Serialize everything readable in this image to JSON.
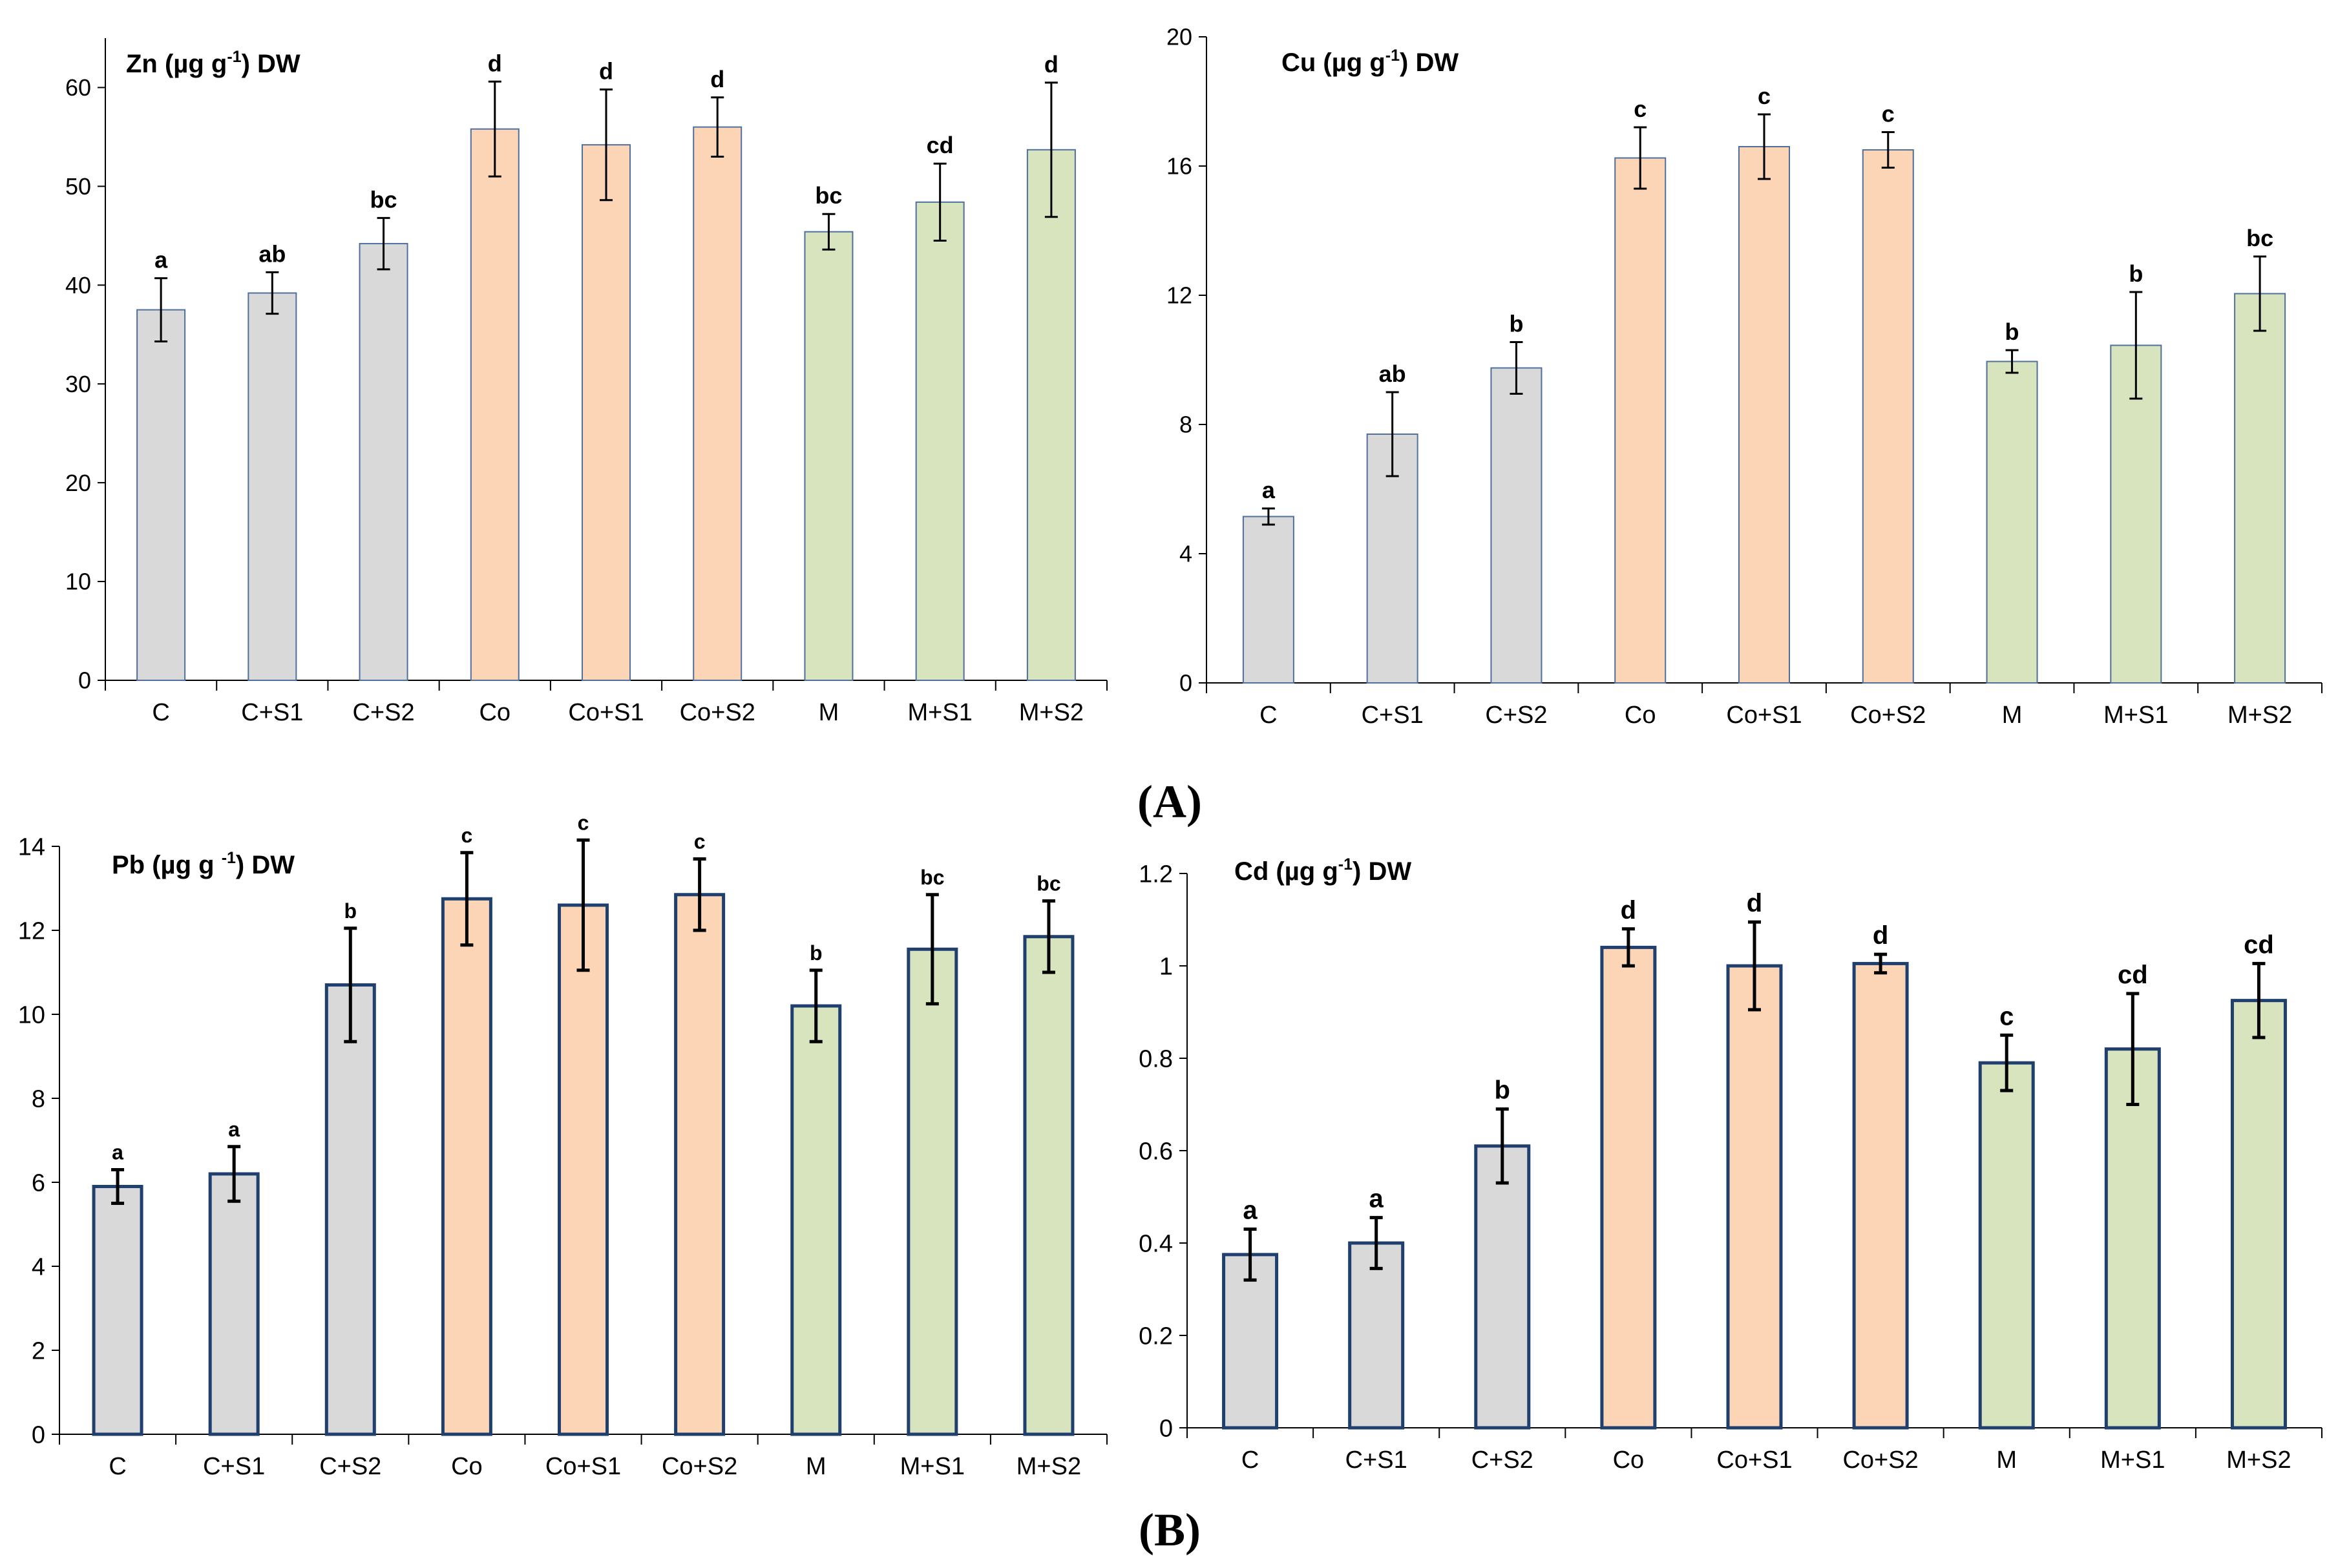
{
  "colors": {
    "gray": "#d9d9d9",
    "orange": "#fbd5b5",
    "green": "#d7e4bd",
    "outline_thin": "#4f6f9f",
    "outline_thick": "#1f3f6f",
    "axis": "#000000"
  },
  "panel_labels": {
    "A": "(A)",
    "B": "(B)"
  },
  "chart_data": [
    {
      "type": "bar",
      "title": "Zn (µg g-1) DW",
      "title_main": "Zn (µg g",
      "title_sup": "-1",
      "title_end": ") DW",
      "categories": [
        "C",
        "C+S1",
        "C+S2",
        "Co",
        "Co+S1",
        "Co+S2",
        "M",
        "M+S1",
        "M+S2"
      ],
      "values": [
        37.5,
        39.2,
        44.2,
        55.8,
        54.2,
        56.0,
        45.4,
        48.4,
        53.7
      ],
      "errors": [
        3.2,
        2.1,
        2.6,
        4.8,
        5.6,
        3.0,
        1.8,
        3.9,
        6.8
      ],
      "letters": [
        "a",
        "ab",
        "bc",
        "d",
        "d",
        "d",
        "bc",
        "cd",
        "d"
      ],
      "fill_groups": [
        "gray",
        "gray",
        "gray",
        "orange",
        "orange",
        "orange",
        "green",
        "green",
        "green"
      ],
      "yticks": [
        "0",
        "10",
        "20",
        "30",
        "40",
        "50",
        "60"
      ],
      "ylim": [
        0,
        65
      ],
      "xlabel": "",
      "ylabel": ""
    },
    {
      "type": "bar",
      "title": "Cu (µg g-1) DW",
      "title_main": "Cu (µg g",
      "title_sup": "-1",
      "title_end": ") DW",
      "categories": [
        "C",
        "C+S1",
        "C+S2",
        "Co",
        "Co+S1",
        "Co+S2",
        "M",
        "M+S1",
        "M+S2"
      ],
      "values": [
        5.15,
        7.7,
        9.75,
        16.25,
        16.6,
        16.5,
        9.95,
        10.45,
        12.05
      ],
      "errors": [
        0.25,
        1.3,
        0.8,
        0.95,
        1.0,
        0.55,
        0.35,
        1.65,
        1.15
      ],
      "letters": [
        "a",
        "ab",
        "b",
        "c",
        "c",
        "c",
        "b",
        "b",
        "bc"
      ],
      "fill_groups": [
        "gray",
        "gray",
        "gray",
        "orange",
        "orange",
        "orange",
        "green",
        "green",
        "green"
      ],
      "yticks": [
        "0",
        "4",
        "8",
        "12",
        "16",
        "20"
      ],
      "ylim": [
        0,
        20
      ],
      "xlabel": "",
      "ylabel": ""
    },
    {
      "type": "bar",
      "title": "Pb (µg g -1) DW",
      "title_main": "Pb (µg g ",
      "title_sup": "-1",
      "title_end": ") DW",
      "categories": [
        "C",
        "C+S1",
        "C+S2",
        "Co",
        "Co+S1",
        "Co+S2",
        "M",
        "M+S1",
        "M+S2"
      ],
      "values": [
        5.9,
        6.2,
        10.7,
        12.75,
        12.6,
        12.85,
        10.2,
        11.55,
        11.85
      ],
      "errors": [
        0.4,
        0.65,
        1.35,
        1.1,
        1.55,
        0.85,
        0.85,
        1.3,
        0.85
      ],
      "letters": [
        "a",
        "a",
        "b",
        "c",
        "c",
        "c",
        "b",
        "bc",
        "bc"
      ],
      "fill_groups": [
        "gray",
        "gray",
        "gray",
        "orange",
        "orange",
        "orange",
        "green",
        "green",
        "green"
      ],
      "yticks": [
        "0",
        "2",
        "4",
        "6",
        "8",
        "10",
        "12",
        "14"
      ],
      "ylim": [
        0,
        14
      ],
      "xlabel": "",
      "ylabel": ""
    },
    {
      "type": "bar",
      "title": "Cd (µg g-1) DW",
      "title_main": "Cd (µg g",
      "title_sup": "-1",
      "title_end": ") DW",
      "categories": [
        "C",
        "C+S1",
        "C+S2",
        "Co",
        "Co+S1",
        "Co+S2",
        "M",
        "M+S1",
        "M+S2"
      ],
      "values": [
        0.375,
        0.4,
        0.61,
        1.04,
        1.0,
        1.005,
        0.79,
        0.82,
        0.925
      ],
      "errors": [
        0.055,
        0.055,
        0.08,
        0.04,
        0.095,
        0.02,
        0.06,
        0.12,
        0.08
      ],
      "letters": [
        "a",
        "a",
        "b",
        "d",
        "d",
        "d",
        "c",
        "cd",
        "cd"
      ],
      "fill_groups": [
        "gray",
        "gray",
        "gray",
        "orange",
        "orange",
        "orange",
        "green",
        "green",
        "green"
      ],
      "yticks": [
        "0",
        "0.2",
        "0.4",
        "0.6",
        "0.8",
        "1",
        "1.2"
      ],
      "ylim": [
        0,
        1.2
      ],
      "xlabel": "",
      "ylabel": ""
    }
  ]
}
